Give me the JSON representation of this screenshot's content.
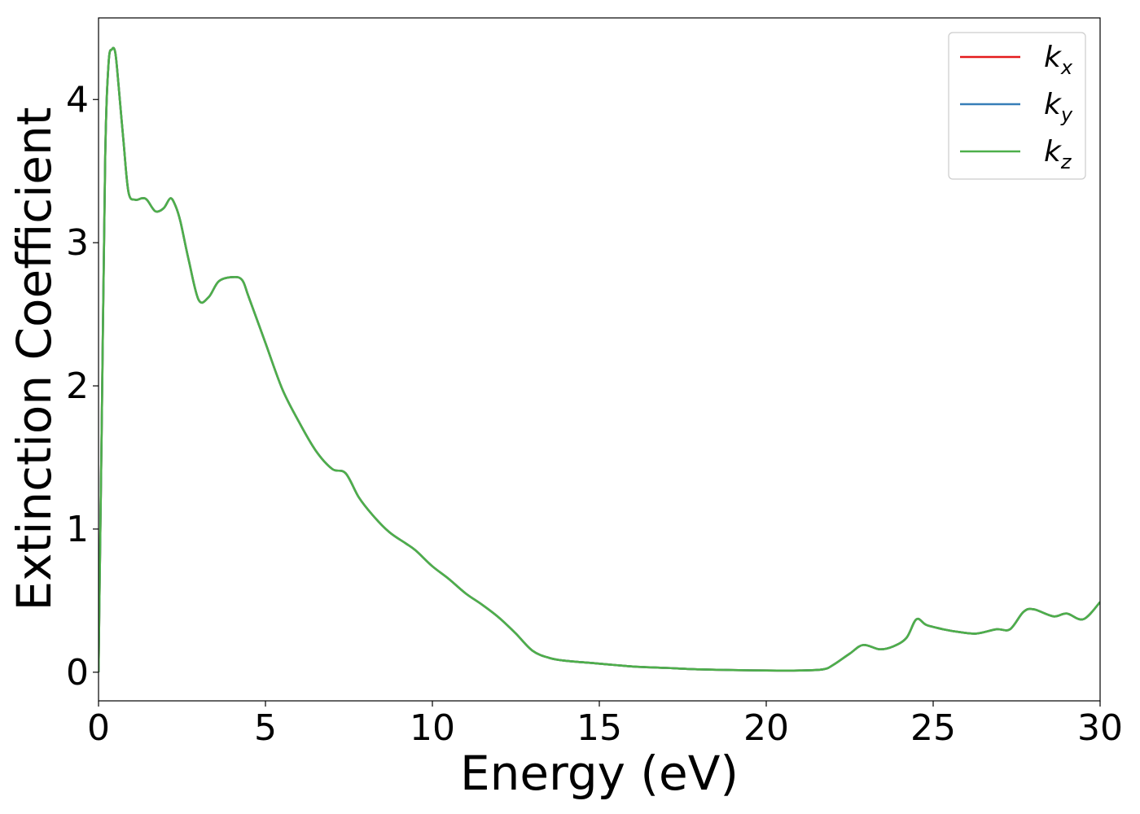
{
  "chart_data": {
    "type": "line",
    "title": "",
    "xlabel": "Energy (eV)",
    "ylabel": "Extinction Coefficient",
    "xlim": [
      0,
      30
    ],
    "ylim": [
      -0.2,
      4.57
    ],
    "xticks": [
      0,
      5,
      10,
      15,
      20,
      25,
      30
    ],
    "yticks": [
      0,
      1,
      2,
      3,
      4
    ],
    "xtick_labels": [
      "0",
      "5",
      "10",
      "15",
      "20",
      "25",
      "30"
    ],
    "ytick_labels": [
      "0",
      "1",
      "2",
      "3",
      "4"
    ],
    "grid": false,
    "legend_position": "top-right",
    "series": [
      {
        "name_base": "k",
        "name_sub": "x",
        "color": "#e41a1c",
        "x": [
          0,
          0.1,
          0.2,
          0.3,
          0.4,
          0.5,
          0.6,
          0.75,
          0.9,
          1.1,
          1.3,
          1.45,
          1.7,
          1.95,
          2.15,
          2.3,
          2.45,
          2.7,
          3.0,
          3.3,
          3.6,
          4.0,
          4.3,
          4.5,
          5.0,
          5.5,
          6.0,
          6.5,
          7.0,
          7.4,
          7.8,
          8.2,
          8.7,
          9.2,
          9.5,
          10.0,
          10.5,
          11.0,
          11.5,
          12.0,
          12.5,
          13.0,
          13.5,
          14.0,
          15.0,
          16.0,
          17.0,
          18.0,
          19.0,
          20.0,
          21.0,
          21.7,
          22.0,
          22.5,
          22.9,
          23.4,
          23.8,
          24.2,
          24.5,
          24.8,
          25.3,
          25.8,
          26.3,
          26.9,
          27.3,
          27.7,
          28.0,
          28.6,
          29.0,
          29.5,
          30.0
        ],
        "y": [
          0.0,
          1.8,
          3.6,
          4.25,
          4.35,
          4.33,
          4.1,
          3.7,
          3.35,
          3.3,
          3.31,
          3.3,
          3.22,
          3.24,
          3.31,
          3.26,
          3.15,
          2.88,
          2.6,
          2.62,
          2.73,
          2.76,
          2.74,
          2.62,
          2.3,
          1.98,
          1.75,
          1.55,
          1.42,
          1.39,
          1.22,
          1.1,
          0.98,
          0.9,
          0.85,
          0.74,
          0.65,
          0.55,
          0.47,
          0.38,
          0.27,
          0.15,
          0.1,
          0.08,
          0.06,
          0.04,
          0.03,
          0.02,
          0.015,
          0.012,
          0.012,
          0.02,
          0.05,
          0.13,
          0.19,
          0.16,
          0.18,
          0.24,
          0.37,
          0.33,
          0.3,
          0.28,
          0.27,
          0.3,
          0.3,
          0.42,
          0.44,
          0.39,
          0.41,
          0.37,
          0.49
        ]
      },
      {
        "name_base": "k",
        "name_sub": "y",
        "color": "#377eb8",
        "x": [
          0,
          0.1,
          0.2,
          0.3,
          0.4,
          0.5,
          0.6,
          0.75,
          0.9,
          1.1,
          1.3,
          1.45,
          1.7,
          1.95,
          2.15,
          2.3,
          2.45,
          2.7,
          3.0,
          3.3,
          3.6,
          4.0,
          4.3,
          4.5,
          5.0,
          5.5,
          6.0,
          6.5,
          7.0,
          7.4,
          7.8,
          8.2,
          8.7,
          9.2,
          9.5,
          10.0,
          10.5,
          11.0,
          11.5,
          12.0,
          12.5,
          13.0,
          13.5,
          14.0,
          15.0,
          16.0,
          17.0,
          18.0,
          19.0,
          20.0,
          21.0,
          21.7,
          22.0,
          22.5,
          22.9,
          23.4,
          23.8,
          24.2,
          24.5,
          24.8,
          25.3,
          25.8,
          26.3,
          26.9,
          27.3,
          27.7,
          28.0,
          28.6,
          29.0,
          29.5,
          30.0
        ],
        "y": [
          0.0,
          1.8,
          3.6,
          4.25,
          4.35,
          4.33,
          4.1,
          3.7,
          3.35,
          3.3,
          3.31,
          3.3,
          3.22,
          3.24,
          3.31,
          3.26,
          3.15,
          2.88,
          2.6,
          2.62,
          2.73,
          2.76,
          2.74,
          2.62,
          2.3,
          1.98,
          1.75,
          1.55,
          1.42,
          1.39,
          1.22,
          1.1,
          0.98,
          0.9,
          0.85,
          0.74,
          0.65,
          0.55,
          0.47,
          0.38,
          0.27,
          0.15,
          0.1,
          0.08,
          0.06,
          0.04,
          0.03,
          0.02,
          0.015,
          0.012,
          0.012,
          0.02,
          0.05,
          0.13,
          0.19,
          0.16,
          0.18,
          0.24,
          0.37,
          0.33,
          0.3,
          0.28,
          0.27,
          0.3,
          0.3,
          0.42,
          0.44,
          0.39,
          0.41,
          0.37,
          0.49
        ]
      },
      {
        "name_base": "k",
        "name_sub": "z",
        "color": "#4daf4a",
        "x": [
          0,
          0.1,
          0.2,
          0.3,
          0.4,
          0.5,
          0.6,
          0.75,
          0.9,
          1.1,
          1.3,
          1.45,
          1.7,
          1.95,
          2.15,
          2.3,
          2.45,
          2.7,
          3.0,
          3.3,
          3.6,
          4.0,
          4.3,
          4.5,
          5.0,
          5.5,
          6.0,
          6.5,
          7.0,
          7.4,
          7.8,
          8.2,
          8.7,
          9.2,
          9.5,
          10.0,
          10.5,
          11.0,
          11.5,
          12.0,
          12.5,
          13.0,
          13.5,
          14.0,
          15.0,
          16.0,
          17.0,
          18.0,
          19.0,
          20.0,
          21.0,
          21.7,
          22.0,
          22.5,
          22.9,
          23.4,
          23.8,
          24.2,
          24.5,
          24.8,
          25.3,
          25.8,
          26.3,
          26.9,
          27.3,
          27.7,
          28.0,
          28.6,
          29.0,
          29.5,
          30.0
        ],
        "y": [
          0.0,
          1.8,
          3.6,
          4.25,
          4.35,
          4.33,
          4.1,
          3.7,
          3.35,
          3.3,
          3.31,
          3.3,
          3.22,
          3.24,
          3.31,
          3.26,
          3.15,
          2.88,
          2.6,
          2.62,
          2.73,
          2.76,
          2.74,
          2.62,
          2.3,
          1.98,
          1.75,
          1.55,
          1.42,
          1.39,
          1.22,
          1.1,
          0.98,
          0.9,
          0.85,
          0.74,
          0.65,
          0.55,
          0.47,
          0.38,
          0.27,
          0.15,
          0.1,
          0.08,
          0.06,
          0.04,
          0.03,
          0.02,
          0.015,
          0.012,
          0.012,
          0.02,
          0.05,
          0.13,
          0.19,
          0.16,
          0.18,
          0.24,
          0.37,
          0.33,
          0.3,
          0.28,
          0.27,
          0.3,
          0.3,
          0.42,
          0.44,
          0.39,
          0.41,
          0.37,
          0.49
        ]
      }
    ]
  }
}
